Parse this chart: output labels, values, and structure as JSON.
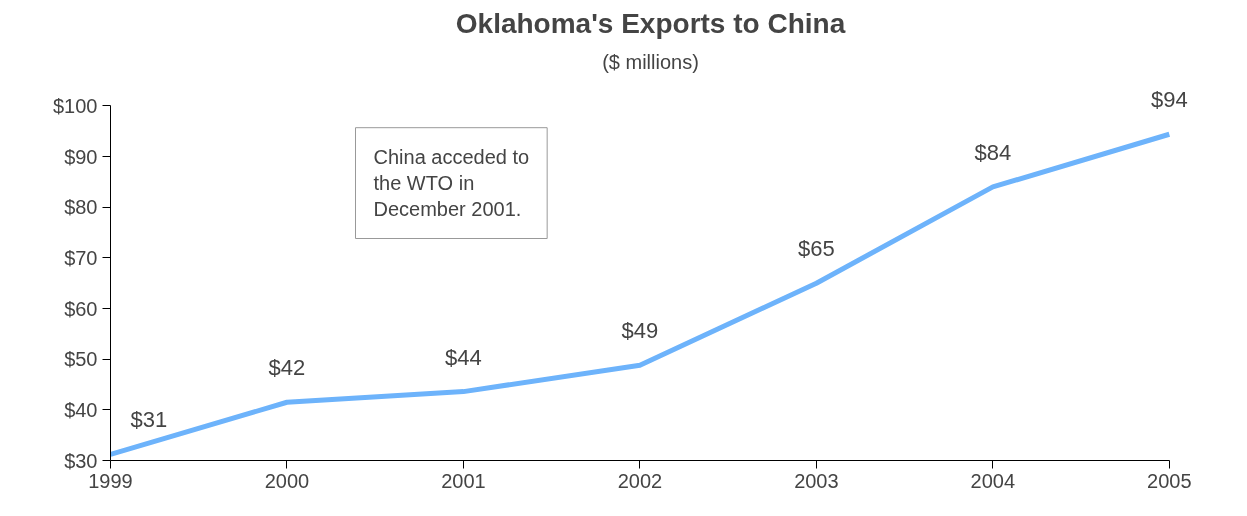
{
  "chart_data": {
    "type": "line",
    "title": "Oklahoma's Exports to China",
    "subtitle": "($ millions)",
    "x": [
      1999,
      2000,
      2001,
      2002,
      2003,
      2004,
      2005
    ],
    "series": [
      {
        "color": "#6db3fb",
        "values": [
          31.2,
          41.5,
          43.6,
          48.8,
          65,
          84,
          94.4
        ],
        "value_labels": [
          "$31",
          "$42",
          "$44",
          "$49",
          "$65",
          "$84",
          "$94"
        ]
      }
    ],
    "xlim": [
      1999,
      2005
    ],
    "xticks": [
      1999,
      2000,
      2001,
      2002,
      2003,
      2004,
      2005
    ],
    "ylim": [
      30,
      100
    ],
    "yticks": [
      {
        "value": 30,
        "label": "$30"
      },
      {
        "value": 40,
        "label": "$40"
      },
      {
        "value": 50,
        "label": "$50"
      },
      {
        "value": 60,
        "label": "$60"
      },
      {
        "value": 70,
        "label": "$70"
      },
      {
        "value": 80,
        "label": "$80"
      },
      {
        "value": 90,
        "label": "$90"
      },
      {
        "value": 100,
        "label": "$100"
      }
    ],
    "annotations": [
      "China acceded to\nthe WTO in\nDecember 2001."
    ],
    "grid": false,
    "marker": "none",
    "line_style": "solid"
  }
}
